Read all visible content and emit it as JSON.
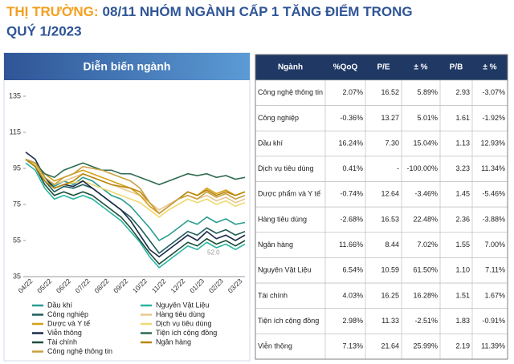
{
  "header": {
    "prefix": "THỊ TRƯỜNG:",
    "title_line1": "08/11 NHÓM NGÀNH CẤP 1 TĂNG ĐIỂM TRONG",
    "title_line2": "QUÝ 1/2023"
  },
  "chart_data": {
    "type": "line",
    "title": "Diễn biến ngành",
    "annotation": "52.0",
    "categories": [
      "04/22",
      null,
      "05/22",
      null,
      "06/22",
      null,
      "07/22",
      null,
      "08/22",
      null,
      "09/22",
      null,
      "10/22",
      null,
      "11/22",
      null,
      "12/22",
      null,
      "01/23",
      null,
      "02/23",
      null,
      "03/23",
      null
    ],
    "ylim": [
      35,
      135
    ],
    "yticks": [
      35,
      55,
      75,
      95,
      115,
      135
    ],
    "series": [
      {
        "name": "Dầu khí",
        "color": "#2a9d8f",
        "values": [
          100,
          98,
          90,
          85,
          88,
          86,
          90,
          88,
          84,
          80,
          78,
          74,
          68,
          62,
          55,
          58,
          62,
          66,
          64,
          68,
          65,
          67,
          64,
          65
        ]
      },
      {
        "name": "Nguyên Vật Liệu",
        "color": "#2bb5a0",
        "values": [
          98,
          94,
          84,
          78,
          80,
          78,
          80,
          78,
          74,
          70,
          66,
          60,
          54,
          46,
          40,
          44,
          48,
          52,
          50,
          54,
          51,
          53,
          50,
          53
        ]
      },
      {
        "name": "Công nghiệp",
        "color": "#1f5c5c",
        "values": [
          100,
          96,
          88,
          82,
          85,
          84,
          86,
          84,
          80,
          76,
          72,
          68,
          62,
          55,
          48,
          52,
          56,
          60,
          58,
          62,
          59,
          61,
          58,
          60
        ]
      },
      {
        "name": "Hàng tiêu dùng",
        "color": "#e8c890",
        "values": [
          100,
          97,
          90,
          86,
          88,
          90,
          92,
          90,
          88,
          86,
          84,
          82,
          80,
          76,
          72,
          75,
          78,
          80,
          78,
          80,
          77,
          79,
          76,
          78
        ]
      },
      {
        "name": "Dược và Y tế",
        "color": "#d4a017",
        "values": [
          100,
          98,
          92,
          88,
          90,
          92,
          94,
          92,
          90,
          88,
          86,
          84,
          80,
          74,
          70,
          74,
          78,
          82,
          80,
          84,
          81,
          83,
          80,
          82
        ]
      },
      {
        "name": "Dịch vụ tiêu dùng",
        "color": "#f0d870",
        "values": [
          100,
          97,
          88,
          84,
          86,
          87,
          88,
          86,
          84,
          82,
          80,
          78,
          76,
          72,
          68,
          72,
          75,
          78,
          76,
          78,
          75,
          77,
          74,
          76
        ]
      },
      {
        "name": "Viễn thông",
        "color": "#1a2a4a",
        "values": [
          104,
          100,
          90,
          84,
          86,
          85,
          88,
          84,
          80,
          76,
          72,
          66,
          58,
          50,
          46,
          50,
          54,
          58,
          55,
          60,
          56,
          58,
          55,
          58
        ]
      },
      {
        "name": "Tiện ích cộng đồng",
        "color": "#2e6b4f",
        "values": [
          100,
          98,
          92,
          90,
          94,
          96,
          98,
          96,
          94,
          94,
          92,
          92,
          90,
          88,
          86,
          88,
          90,
          92,
          91,
          92,
          90,
          91,
          89,
          90
        ]
      },
      {
        "name": "Tài chính",
        "color": "#1d4d3a",
        "values": [
          100,
          96,
          86,
          80,
          82,
          80,
          82,
          80,
          76,
          72,
          68,
          62,
          55,
          48,
          42,
          46,
          50,
          54,
          52,
          56,
          53,
          55,
          52,
          55
        ]
      },
      {
        "name": "Ngân hàng",
        "color": "#b8860b",
        "values": [
          100,
          96,
          88,
          84,
          86,
          88,
          92,
          90,
          88,
          86,
          85,
          84,
          82,
          76,
          70,
          74,
          78,
          82,
          80,
          83,
          80,
          82,
          80,
          82
        ]
      },
      {
        "name": "Công nghệ thông tin",
        "color": "#c8a040",
        "values": [
          100,
          98,
          90,
          86,
          90,
          92,
          96,
          95,
          94,
          92,
          90,
          88,
          84,
          76,
          70,
          74,
          78,
          80,
          78,
          82,
          79,
          81,
          78,
          80
        ]
      }
    ]
  },
  "table": {
    "columns": [
      "Ngành",
      "%QoQ",
      "P/E",
      "± %",
      "P/B",
      "± %"
    ],
    "rows": [
      [
        "Công nghệ thông tin",
        "2.07%",
        "16.52",
        "5.89%",
        "2.93",
        "-3.07%"
      ],
      [
        "Công nghiệp",
        "-0.36%",
        "13.27",
        "5.01%",
        "1.61",
        "-1.92%"
      ],
      [
        "Dầu khí",
        "16.24%",
        "7.30",
        "15.04%",
        "1.13",
        "12.93%"
      ],
      [
        "Dịch vụ tiêu dùng",
        "0.41%",
        "-",
        "-100.00%",
        "3.23",
        "11.34%"
      ],
      [
        "Dược phẩm và Y tế",
        "-0.74%",
        "12.64",
        "-3.46%",
        "1.45",
        "-5.46%"
      ],
      [
        "Hàng tiêu dùng",
        "-2.68%",
        "16.53",
        "22.48%",
        "2.36",
        "-3.88%"
      ],
      [
        "Ngân hàng",
        "11.66%",
        "8.44",
        "7.02%",
        "1.55",
        "7.00%"
      ],
      [
        "Nguyên Vật Liệu",
        "6.54%",
        "10.59",
        "61.50%",
        "1.10",
        "7.11%"
      ],
      [
        "Tài chính",
        "4.03%",
        "16.25",
        "16.28%",
        "1.51",
        "1.67%"
      ],
      [
        "Tiện ích cộng đồng",
        "2.98%",
        "11.33",
        "-2.51%",
        "1.83",
        "-0.91%"
      ],
      [
        "Viễn thông",
        "7.13%",
        "21.64",
        "25.99%",
        "2.19",
        "11.39%"
      ]
    ]
  }
}
